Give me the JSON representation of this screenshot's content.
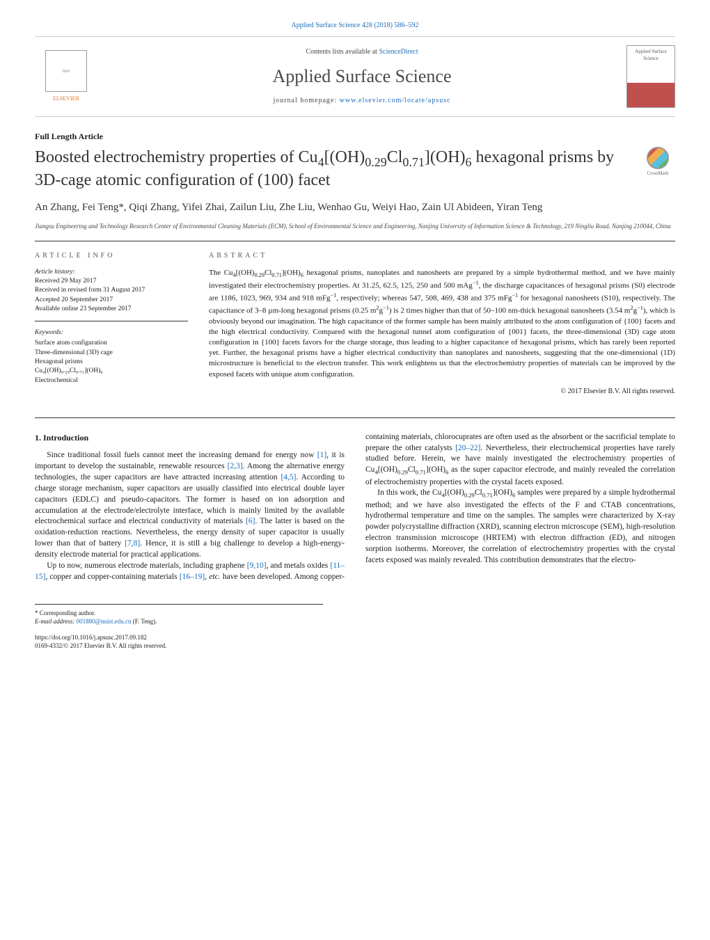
{
  "header": {
    "citation": "Applied Surface Science 428 (2018) 586–592",
    "contents_text": "Contents lists available at ",
    "contents_link": "ScienceDirect",
    "journal_name": "Applied Surface Science",
    "homepage_label": "journal homepage: ",
    "homepage_link": "www.elsevier.com/locate/apsusc",
    "elsevier_label": "ELSEVIER",
    "cover_label": "Applied Surface Science"
  },
  "article": {
    "type": "Full Length Article",
    "title_html": "Boosted electrochemistry properties of Cu<sub>4</sub>[(OH)<sub>0.29</sub>Cl<sub>0.71</sub>](OH)<sub>6</sub> hexagonal prisms by 3D-cage atomic configuration of (100) facet",
    "crossmark": "CrossMark",
    "authors": "An Zhang, Fei Teng*, Qiqi Zhang, Yifei Zhai, Zailun Liu, Zhe Liu, Wenhao Gu, Weiyi Hao, Zain Ul Abideen, Yiran Teng",
    "affiliation": "Jiangsu Engineering and Technology Research Center of Environmental Cleaning Materials (ECM), School of Environmental Science and Engineering, Nanjing University of Information Science & Technology, 219 Ningliu Road, Nanjing 210044, China"
  },
  "info": {
    "heading": "article info",
    "history_label": "Article history:",
    "received": "Received 29 May 2017",
    "revised": "Received in revised form 31 August 2017",
    "accepted": "Accepted 20 September 2017",
    "online": "Available online 23 September 2017",
    "keywords_label": "Keywords:",
    "keywords": [
      "Surface atom configuration",
      "Three-dimensional (3D) cage",
      "Hexagonal prisms",
      "Cu₄[(OH)₀.₂₉Cl₀.₇₁](OH)₆",
      "Electrochemical"
    ]
  },
  "abstract": {
    "heading": "abstract",
    "text_html": "The Cu<sub>4</sub>[(OH)<sub>0.29</sub>Cl<sub>0.71</sub>](OH)<sub>6</sub> hexagonal prisms, nanoplates and nanosheets are prepared by a simple hydrothermal method, and we have mainly investigated their electrochemistry properties. At 31.25, 62.5, 125, 250 and 500 mAg<sup>−1</sup>, the discharge capacitances of hexagonal prisms (S0) electrode are 1186, 1023, 969, 934 and 918 mFg<sup>−1</sup>, respectively; whereas 547, 508, 469, 438 and 375 mFg<sup>−1</sup> for hexagonal nanosheets (S10), respectively. The capacitance of 3–8 µm-long hexagonal prisms (0.25 m<sup>2</sup>g<sup>−1</sup>) is 2 times higher than that of 50–100 nm-thick hexagonal nanosheets (3.54 m<sup>2</sup>g<sup>−1</sup>), which is obviously beyond our imagination. The high capacitance of the former sample has been mainly attributed to the atom configuration of {100} facets and the high electrical conductivity. Compared with the hexagonal tunnel atom configuration of {001} facets, the three-dimensional (3D) cage atom configuration in {100} facets favors for the charge storage, thus leading to a higher capacitance of hexagonal prisms, which has rarely been reported yet. Further, the hexagonal prisms have a higher electrical conductivity than nanoplates and nanosheets, suggesting that the one-dimensional (1D) microstructure is beneficial to the electron transfer. This work enlightens us that the electrochemistry properties of materials can be improved by the exposed facets with unique atom configuration.",
    "copyright": "© 2017 Elsevier B.V. All rights reserved."
  },
  "body": {
    "section_heading": "1. Introduction",
    "para1_html": "Since traditional fossil fuels cannot meet the increasing demand for energy now <span class=\"ref\">[1]</span>, it is important to develop the sustainable, renewable resources <span class=\"ref\">[2,3]</span>. Among the alternative energy technologies, the super capacitors are have attracted increasing attention <span class=\"ref\">[4,5]</span>. According to charge storage mechanism, super capacitors are usually classified into electrical double layer capacitors (EDLC) and pseudo-capacitors. The former is based on ion adsorption and accumulation at the electrode/electrolyte interface, which is mainly limited by the available electrochemical surface and electrical conductivity of materials <span class=\"ref\">[6]</span>. The latter is based on the oxidation-reduction reactions. Nevertheless, the energy density of super capacitor is usually lower than that of battery <span class=\"ref\">[7,8]</span>. Hence, it is still a big challenge to develop a high-energy-density electrode material for practical applications.",
    "para2_html": "Up to now, numerous electrode materials, including graphene <span class=\"ref\">[9,10]</span>, and metals oxides <span class=\"ref\">[11–15]</span>, copper and copper-containing materials <span class=\"ref\">[16–19]</span>, <i>etc.</i> have been developed. Among copper-containing materials, chlorocuprates are often used as the absorbent or the sacrificial template to prepare the other catalysts <span class=\"ref\">[20–22]</span>. Nevertheless, their electrochemical properties have rarely studied before. Herein, we have mainly investigated the electrochemistry properties of Cu<sub>4</sub>[(OH)<sub>0.29</sub>Cl<sub>0.71</sub>](OH)<sub>6</sub> as the super capacitor electrode, and mainly revealed the correlation of electrochemistry properties with the crystal facets exposed.",
    "para3_html": "In this work, the Cu<sub>4</sub>[(OH)<sub>0.29</sub>Cl<sub>0.71</sub>](OH)<sub>6</sub> samples were prepared by a simple hydrothermal method; and we have also investigated the effects of the F and CTAB concentrations, hydrothermal temperature and time on the samples. The samples were characterized by X-ray powder polycrystalline diffraction (XRD), scanning electron microscope (SEM), high-resolution electron transmission microscope (HRTEM) with electron diffraction (ED), and nitrogen sorption isotherms. Moreover, the correlation of electrochemistry properties with the crystal facets exposed was mainly revealed. This contribution demonstrates that the electro-"
  },
  "footer": {
    "corresponding": "* Corresponding author.",
    "email_label": "E-mail address: ",
    "email": "001880@nuist.edu.cn",
    "email_name": " (F. Teng).",
    "doi": "https://doi.org/10.1016/j.apsusc.2017.09.182",
    "issn_line": "0169-4332/© 2017 Elsevier B.V. All rights reserved."
  },
  "colors": {
    "link": "#1a6bb8",
    "text": "#1a1a1a",
    "elsevier_orange": "#e8731f"
  }
}
